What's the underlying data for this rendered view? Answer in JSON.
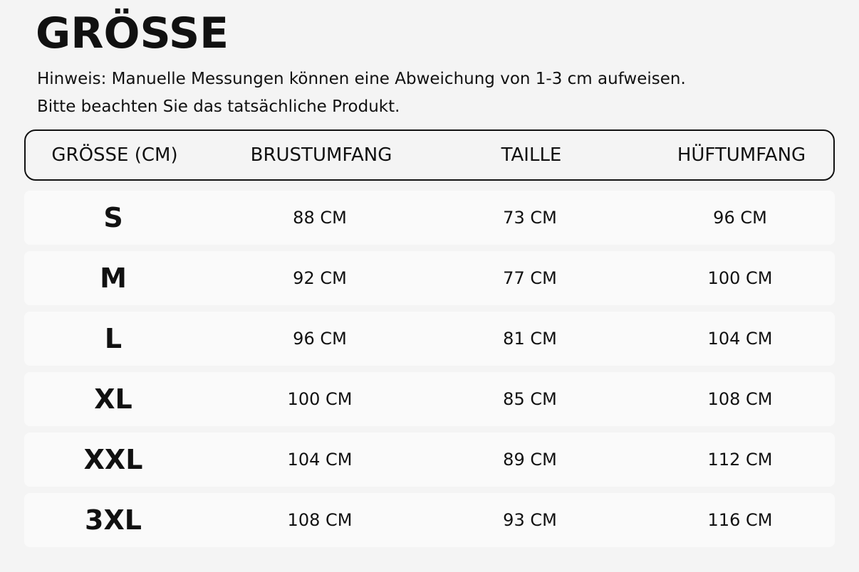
{
  "header": {
    "title": "GRÖSSE",
    "notes": [
      "Hinweis: Manuelle Messungen können eine Abweichung von 1-3 cm aufweisen.",
      "Bitte beachten Sie das tatsächliche Produkt."
    ]
  },
  "table": {
    "columns": [
      "GRÖSSE (CM)",
      "BRUSTUMFANG",
      "TAILLE",
      "HÜFTUMFANG"
    ],
    "rows": [
      [
        "S",
        "88 CM",
        "73 CM",
        "96 CM"
      ],
      [
        "M",
        "92 CM",
        "77 CM",
        "100 CM"
      ],
      [
        "L",
        "96 CM",
        "81 CM",
        "104 CM"
      ],
      [
        "XL",
        "100 CM",
        "85 CM",
        "108 CM"
      ],
      [
        "XXL",
        "104 CM",
        "89 CM",
        "112 CM"
      ],
      [
        "3XL",
        "108 CM",
        "93 CM",
        "116 CM"
      ]
    ]
  }
}
